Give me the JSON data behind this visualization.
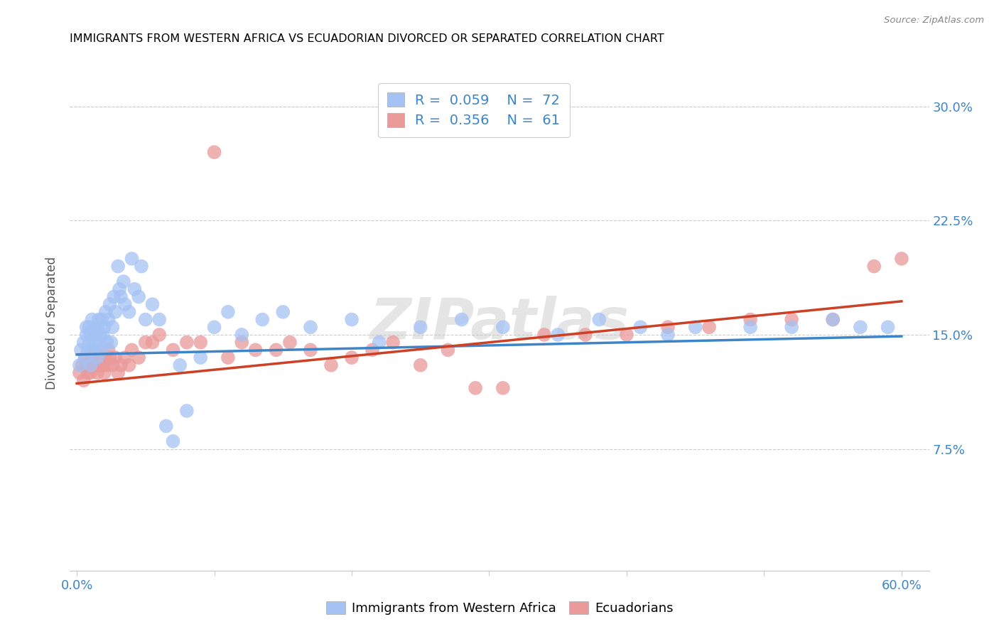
{
  "title": "IMMIGRANTS FROM WESTERN AFRICA VS ECUADORIAN DIVORCED OR SEPARATED CORRELATION CHART",
  "source": "Source: ZipAtlas.com",
  "ylabel": "Divorced or Separated",
  "ylabel_ticks": [
    "7.5%",
    "15.0%",
    "22.5%",
    "30.0%"
  ],
  "ylabel_vals": [
    0.075,
    0.15,
    0.225,
    0.3
  ],
  "xtick_vals": [
    0.0,
    0.1,
    0.2,
    0.3,
    0.4,
    0.5,
    0.6
  ],
  "xlim": [
    -0.005,
    0.62
  ],
  "ylim": [
    -0.005,
    0.32
  ],
  "color_blue": "#a4c2f4",
  "color_pink": "#ea9999",
  "color_blue_line": "#3d85c8",
  "color_pink_line": "#cc4125",
  "watermark": "ZIPatlas",
  "blue_scatter_x": [
    0.002,
    0.003,
    0.005,
    0.006,
    0.007,
    0.007,
    0.008,
    0.009,
    0.009,
    0.01,
    0.01,
    0.011,
    0.012,
    0.013,
    0.013,
    0.014,
    0.015,
    0.015,
    0.016,
    0.016,
    0.017,
    0.018,
    0.018,
    0.019,
    0.02,
    0.021,
    0.022,
    0.023,
    0.024,
    0.025,
    0.026,
    0.027,
    0.028,
    0.03,
    0.031,
    0.032,
    0.034,
    0.035,
    0.038,
    0.04,
    0.042,
    0.045,
    0.047,
    0.05,
    0.055,
    0.06,
    0.065,
    0.07,
    0.075,
    0.08,
    0.09,
    0.1,
    0.11,
    0.12,
    0.135,
    0.15,
    0.17,
    0.2,
    0.22,
    0.25,
    0.28,
    0.31,
    0.35,
    0.38,
    0.41,
    0.43,
    0.45,
    0.49,
    0.52,
    0.55,
    0.57,
    0.59
  ],
  "blue_scatter_y": [
    0.13,
    0.14,
    0.145,
    0.135,
    0.15,
    0.155,
    0.14,
    0.145,
    0.155,
    0.13,
    0.15,
    0.16,
    0.14,
    0.15,
    0.155,
    0.145,
    0.135,
    0.155,
    0.145,
    0.16,
    0.15,
    0.14,
    0.16,
    0.15,
    0.155,
    0.165,
    0.145,
    0.16,
    0.17,
    0.145,
    0.155,
    0.175,
    0.165,
    0.195,
    0.18,
    0.175,
    0.185,
    0.17,
    0.165,
    0.2,
    0.18,
    0.175,
    0.195,
    0.16,
    0.17,
    0.16,
    0.09,
    0.08,
    0.13,
    0.1,
    0.135,
    0.155,
    0.165,
    0.15,
    0.16,
    0.165,
    0.155,
    0.16,
    0.145,
    0.155,
    0.16,
    0.155,
    0.15,
    0.16,
    0.155,
    0.15,
    0.155,
    0.155,
    0.155,
    0.16,
    0.155,
    0.155
  ],
  "pink_scatter_x": [
    0.002,
    0.004,
    0.005,
    0.006,
    0.007,
    0.008,
    0.009,
    0.01,
    0.011,
    0.012,
    0.013,
    0.014,
    0.015,
    0.016,
    0.017,
    0.018,
    0.019,
    0.02,
    0.021,
    0.022,
    0.023,
    0.024,
    0.026,
    0.028,
    0.03,
    0.032,
    0.035,
    0.038,
    0.04,
    0.045,
    0.05,
    0.055,
    0.06,
    0.07,
    0.08,
    0.09,
    0.1,
    0.11,
    0.12,
    0.13,
    0.145,
    0.155,
    0.17,
    0.185,
    0.2,
    0.215,
    0.23,
    0.25,
    0.27,
    0.29,
    0.31,
    0.34,
    0.37,
    0.4,
    0.43,
    0.46,
    0.49,
    0.52,
    0.55,
    0.58,
    0.6
  ],
  "pink_scatter_y": [
    0.125,
    0.13,
    0.12,
    0.135,
    0.13,
    0.125,
    0.13,
    0.125,
    0.135,
    0.13,
    0.14,
    0.13,
    0.125,
    0.135,
    0.13,
    0.135,
    0.13,
    0.125,
    0.135,
    0.13,
    0.14,
    0.135,
    0.13,
    0.135,
    0.125,
    0.13,
    0.135,
    0.13,
    0.14,
    0.135,
    0.145,
    0.145,
    0.15,
    0.14,
    0.145,
    0.145,
    0.27,
    0.135,
    0.145,
    0.14,
    0.14,
    0.145,
    0.14,
    0.13,
    0.135,
    0.14,
    0.145,
    0.13,
    0.14,
    0.115,
    0.115,
    0.15,
    0.15,
    0.15,
    0.155,
    0.155,
    0.16,
    0.16,
    0.16,
    0.195,
    0.2
  ],
  "blue_trend_x": [
    0.0,
    0.6
  ],
  "blue_trend_y": [
    0.137,
    0.149
  ],
  "pink_trend_x": [
    0.0,
    0.6
  ],
  "pink_trend_y": [
    0.118,
    0.172
  ],
  "legend1_color_r": "#3d85c8",
  "legend1_color_n": "#cc0000",
  "legend2_color_r": "#3d85c8",
  "legend2_color_n": "#cc0000"
}
